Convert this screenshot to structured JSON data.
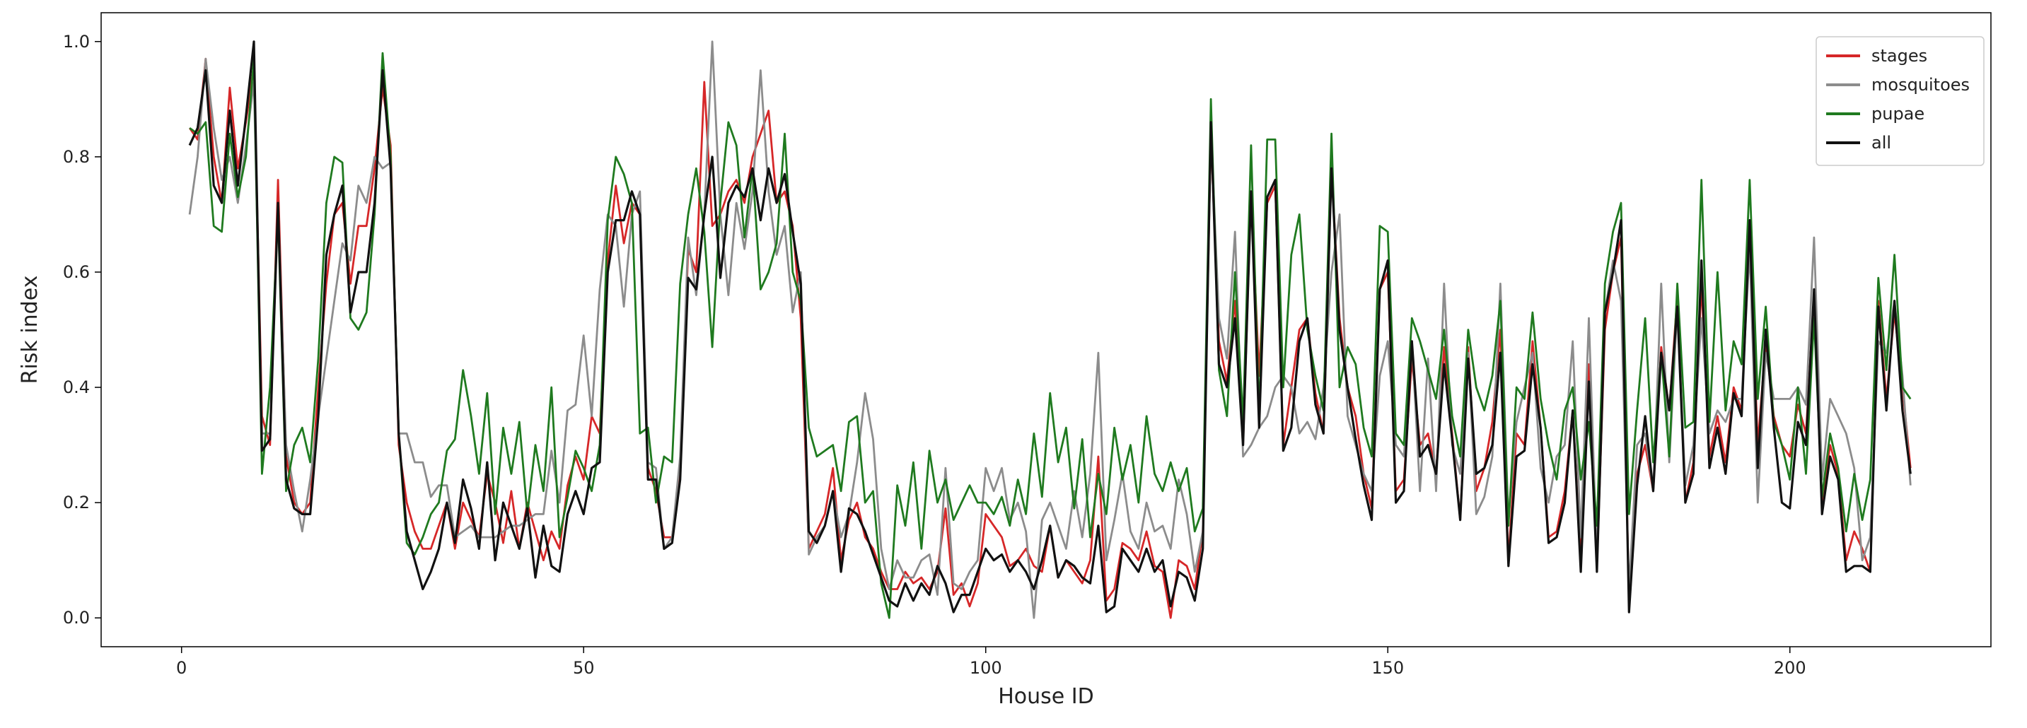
{
  "chart_data": {
    "type": "line",
    "xlabel": "House ID",
    "ylabel": "Risk index",
    "xlim": [
      -10,
      225
    ],
    "ylim": [
      -0.05,
      1.05
    ],
    "xticks": [
      0,
      50,
      100,
      150,
      200
    ],
    "yticks": [
      0.0,
      0.2,
      0.4,
      0.6,
      0.8,
      1.0
    ],
    "ytick_labels": [
      "0.0",
      "0.2",
      "0.4",
      "0.6",
      "0.8",
      "1.0"
    ],
    "grid": false,
    "legend_position": "top-right",
    "x_start": 1,
    "series": [
      {
        "name": "stages",
        "color": "#d62728",
        "values": [
          0.85,
          0.83,
          0.97,
          0.8,
          0.72,
          0.92,
          0.78,
          0.86,
          0.96,
          0.35,
          0.3,
          0.76,
          0.28,
          0.2,
          0.18,
          0.2,
          0.4,
          0.58,
          0.7,
          0.72,
          0.58,
          0.68,
          0.68,
          0.78,
          0.92,
          0.82,
          0.3,
          0.2,
          0.15,
          0.12,
          0.12,
          0.16,
          0.2,
          0.12,
          0.2,
          0.17,
          0.14,
          0.25,
          0.2,
          0.13,
          0.22,
          0.12,
          0.2,
          0.15,
          0.1,
          0.15,
          0.12,
          0.23,
          0.28,
          0.24,
          0.35,
          0.32,
          0.62,
          0.75,
          0.65,
          0.72,
          0.7,
          0.26,
          0.22,
          0.14,
          0.14,
          0.26,
          0.64,
          0.6,
          0.93,
          0.68,
          0.7,
          0.74,
          0.76,
          0.72,
          0.8,
          0.84,
          0.88,
          0.72,
          0.74,
          0.68,
          0.52,
          0.12,
          0.15,
          0.18,
          0.26,
          0.1,
          0.17,
          0.2,
          0.14,
          0.12,
          0.08,
          0.05,
          0.05,
          0.08,
          0.06,
          0.07,
          0.05,
          0.08,
          0.19,
          0.04,
          0.06,
          0.02,
          0.06,
          0.18,
          0.16,
          0.14,
          0.09,
          0.1,
          0.12,
          0.09,
          0.08,
          0.16,
          0.07,
          0.1,
          0.08,
          0.06,
          0.1,
          0.28,
          0.03,
          0.05,
          0.13,
          0.12,
          0.1,
          0.15,
          0.09,
          0.08,
          0.0,
          0.1,
          0.09,
          0.05,
          0.15,
          0.84,
          0.48,
          0.41,
          0.55,
          0.3,
          0.74,
          0.42,
          0.72,
          0.75,
          0.3,
          0.4,
          0.5,
          0.52,
          0.39,
          0.32,
          0.78,
          0.52,
          0.4,
          0.35,
          0.25,
          0.19,
          0.57,
          0.6,
          0.22,
          0.24,
          0.45,
          0.3,
          0.32,
          0.25,
          0.47,
          0.32,
          0.17,
          0.47,
          0.22,
          0.26,
          0.34,
          0.5,
          0.1,
          0.32,
          0.3,
          0.48,
          0.33,
          0.14,
          0.15,
          0.22,
          0.36,
          0.1,
          0.44,
          0.09,
          0.5,
          0.6,
          0.66,
          0.03,
          0.25,
          0.3,
          0.22,
          0.47,
          0.36,
          0.56,
          0.2,
          0.27,
          0.58,
          0.28,
          0.35,
          0.27,
          0.4,
          0.36,
          0.68,
          0.3,
          0.48,
          0.35,
          0.3,
          0.28,
          0.37,
          0.32,
          0.56,
          0.2,
          0.3,
          0.25,
          0.1,
          0.15,
          0.12,
          0.08,
          0.55,
          0.38,
          0.53,
          0.4,
          0.26
        ]
      },
      {
        "name": "mosquitoes",
        "color": "#8c8c8c",
        "values": [
          0.7,
          0.8,
          0.97,
          0.85,
          0.76,
          0.8,
          0.72,
          0.82,
          0.93,
          0.32,
          0.32,
          0.72,
          0.3,
          0.22,
          0.15,
          0.24,
          0.35,
          0.45,
          0.55,
          0.65,
          0.62,
          0.75,
          0.72,
          0.8,
          0.78,
          0.79,
          0.32,
          0.32,
          0.27,
          0.27,
          0.21,
          0.23,
          0.23,
          0.14,
          0.15,
          0.16,
          0.14,
          0.14,
          0.14,
          0.15,
          0.16,
          0.16,
          0.17,
          0.18,
          0.18,
          0.29,
          0.2,
          0.36,
          0.37,
          0.49,
          0.35,
          0.57,
          0.7,
          0.68,
          0.54,
          0.7,
          0.74,
          0.27,
          0.26,
          0.12,
          0.14,
          0.28,
          0.66,
          0.56,
          0.7,
          1.0,
          0.7,
          0.56,
          0.72,
          0.64,
          0.74,
          0.95,
          0.74,
          0.63,
          0.68,
          0.53,
          0.6,
          0.11,
          0.14,
          0.16,
          0.22,
          0.14,
          0.18,
          0.27,
          0.39,
          0.31,
          0.12,
          0.05,
          0.1,
          0.07,
          0.07,
          0.1,
          0.11,
          0.04,
          0.26,
          0.06,
          0.05,
          0.08,
          0.1,
          0.26,
          0.22,
          0.26,
          0.17,
          0.2,
          0.15,
          0.0,
          0.17,
          0.2,
          0.16,
          0.12,
          0.22,
          0.14,
          0.25,
          0.46,
          0.1,
          0.17,
          0.25,
          0.15,
          0.12,
          0.2,
          0.15,
          0.16,
          0.12,
          0.24,
          0.18,
          0.08,
          0.15,
          0.85,
          0.52,
          0.45,
          0.67,
          0.28,
          0.3,
          0.33,
          0.35,
          0.4,
          0.42,
          0.4,
          0.32,
          0.34,
          0.31,
          0.4,
          0.6,
          0.7,
          0.35,
          0.3,
          0.25,
          0.22,
          0.42,
          0.48,
          0.3,
          0.28,
          0.48,
          0.22,
          0.45,
          0.22,
          0.58,
          0.3,
          0.25,
          0.46,
          0.18,
          0.21,
          0.28,
          0.58,
          0.17,
          0.34,
          0.4,
          0.46,
          0.26,
          0.2,
          0.28,
          0.3,
          0.48,
          0.14,
          0.52,
          0.1,
          0.53,
          0.62,
          0.55,
          0.05,
          0.3,
          0.32,
          0.22,
          0.58,
          0.27,
          0.54,
          0.23,
          0.3,
          0.52,
          0.32,
          0.36,
          0.34,
          0.38,
          0.38,
          0.64,
          0.2,
          0.46,
          0.38,
          0.38,
          0.38,
          0.4,
          0.37,
          0.66,
          0.24,
          0.38,
          0.35,
          0.32,
          0.26,
          0.1,
          0.14,
          0.48,
          0.46,
          0.55,
          0.42,
          0.23
        ]
      },
      {
        "name": "pupae",
        "color": "#1f7a1f",
        "values": [
          0.85,
          0.84,
          0.86,
          0.68,
          0.67,
          0.84,
          0.73,
          0.8,
          0.97,
          0.25,
          0.4,
          0.7,
          0.22,
          0.3,
          0.33,
          0.27,
          0.45,
          0.72,
          0.8,
          0.79,
          0.52,
          0.5,
          0.53,
          0.7,
          0.98,
          0.8,
          0.32,
          0.13,
          0.11,
          0.14,
          0.18,
          0.2,
          0.29,
          0.31,
          0.43,
          0.35,
          0.25,
          0.39,
          0.18,
          0.33,
          0.25,
          0.34,
          0.18,
          0.3,
          0.22,
          0.4,
          0.14,
          0.21,
          0.29,
          0.26,
          0.22,
          0.3,
          0.69,
          0.8,
          0.77,
          0.72,
          0.32,
          0.33,
          0.2,
          0.28,
          0.27,
          0.58,
          0.7,
          0.78,
          0.67,
          0.47,
          0.72,
          0.86,
          0.82,
          0.66,
          0.78,
          0.57,
          0.6,
          0.65,
          0.84,
          0.6,
          0.55,
          0.33,
          0.28,
          0.29,
          0.3,
          0.22,
          0.34,
          0.35,
          0.2,
          0.22,
          0.06,
          0.0,
          0.23,
          0.16,
          0.27,
          0.12,
          0.29,
          0.2,
          0.24,
          0.17,
          0.2,
          0.23,
          0.2,
          0.2,
          0.18,
          0.21,
          0.16,
          0.24,
          0.18,
          0.32,
          0.21,
          0.39,
          0.27,
          0.33,
          0.19,
          0.31,
          0.14,
          0.25,
          0.18,
          0.33,
          0.24,
          0.3,
          0.2,
          0.35,
          0.25,
          0.22,
          0.27,
          0.22,
          0.26,
          0.15,
          0.19,
          0.9,
          0.43,
          0.35,
          0.6,
          0.34,
          0.82,
          0.35,
          0.83,
          0.83,
          0.4,
          0.63,
          0.7,
          0.5,
          0.42,
          0.36,
          0.84,
          0.4,
          0.47,
          0.44,
          0.33,
          0.28,
          0.68,
          0.67,
          0.32,
          0.3,
          0.52,
          0.48,
          0.43,
          0.38,
          0.5,
          0.35,
          0.28,
          0.5,
          0.4,
          0.36,
          0.42,
          0.55,
          0.16,
          0.4,
          0.38,
          0.53,
          0.38,
          0.3,
          0.24,
          0.36,
          0.4,
          0.24,
          0.34,
          0.16,
          0.58,
          0.67,
          0.72,
          0.18,
          0.36,
          0.52,
          0.27,
          0.46,
          0.28,
          0.58,
          0.33,
          0.34,
          0.76,
          0.34,
          0.6,
          0.36,
          0.48,
          0.44,
          0.76,
          0.38,
          0.54,
          0.34,
          0.3,
          0.24,
          0.4,
          0.25,
          0.52,
          0.21,
          0.32,
          0.26,
          0.15,
          0.25,
          0.17,
          0.24,
          0.59,
          0.43,
          0.63,
          0.4,
          0.38
        ]
      },
      {
        "name": "all",
        "color": "#111111",
        "values": [
          0.82,
          0.85,
          0.95,
          0.75,
          0.72,
          0.88,
          0.75,
          0.87,
          1.0,
          0.29,
          0.31,
          0.72,
          0.24,
          0.19,
          0.18,
          0.18,
          0.35,
          0.63,
          0.7,
          0.75,
          0.53,
          0.6,
          0.6,
          0.72,
          0.95,
          0.78,
          0.32,
          0.15,
          0.1,
          0.05,
          0.08,
          0.12,
          0.2,
          0.13,
          0.24,
          0.19,
          0.12,
          0.27,
          0.1,
          0.2,
          0.16,
          0.12,
          0.19,
          0.07,
          0.16,
          0.09,
          0.08,
          0.18,
          0.22,
          0.18,
          0.26,
          0.27,
          0.6,
          0.69,
          0.69,
          0.74,
          0.7,
          0.24,
          0.24,
          0.12,
          0.13,
          0.24,
          0.59,
          0.57,
          0.7,
          0.8,
          0.59,
          0.72,
          0.75,
          0.73,
          0.78,
          0.69,
          0.78,
          0.72,
          0.77,
          0.67,
          0.58,
          0.15,
          0.13,
          0.16,
          0.22,
          0.08,
          0.19,
          0.18,
          0.15,
          0.11,
          0.07,
          0.03,
          0.02,
          0.06,
          0.03,
          0.06,
          0.04,
          0.09,
          0.06,
          0.01,
          0.04,
          0.04,
          0.08,
          0.12,
          0.1,
          0.11,
          0.08,
          0.1,
          0.08,
          0.05,
          0.1,
          0.16,
          0.07,
          0.1,
          0.09,
          0.07,
          0.06,
          0.16,
          0.01,
          0.02,
          0.12,
          0.1,
          0.08,
          0.12,
          0.08,
          0.1,
          0.02,
          0.08,
          0.07,
          0.03,
          0.12,
          0.86,
          0.44,
          0.4,
          0.52,
          0.3,
          0.74,
          0.33,
          0.73,
          0.76,
          0.29,
          0.33,
          0.48,
          0.52,
          0.37,
          0.32,
          0.78,
          0.5,
          0.4,
          0.31,
          0.23,
          0.17,
          0.57,
          0.62,
          0.2,
          0.22,
          0.48,
          0.28,
          0.3,
          0.25,
          0.44,
          0.31,
          0.17,
          0.45,
          0.25,
          0.26,
          0.3,
          0.46,
          0.09,
          0.28,
          0.29,
          0.44,
          0.33,
          0.13,
          0.14,
          0.2,
          0.36,
          0.08,
          0.41,
          0.08,
          0.53,
          0.6,
          0.69,
          0.01,
          0.23,
          0.35,
          0.22,
          0.46,
          0.36,
          0.54,
          0.2,
          0.25,
          0.62,
          0.26,
          0.33,
          0.25,
          0.39,
          0.35,
          0.69,
          0.26,
          0.5,
          0.33,
          0.2,
          0.19,
          0.34,
          0.3,
          0.57,
          0.18,
          0.28,
          0.24,
          0.08,
          0.09,
          0.09,
          0.08,
          0.54,
          0.36,
          0.55,
          0.36,
          0.25
        ]
      }
    ]
  }
}
